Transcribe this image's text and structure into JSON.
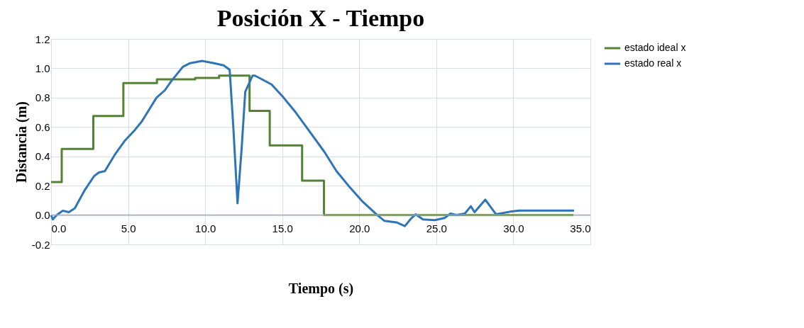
{
  "chart_data": {
    "type": "line",
    "title": "Posición X - Tiempo",
    "xlabel": "Tiempo (s)",
    "ylabel": "Distancia (m)",
    "xlim": [
      0,
      35
    ],
    "xticks": [
      {
        "value": 0,
        "label": "0.0"
      },
      {
        "value": 5,
        "label": "5.0"
      },
      {
        "value": 10,
        "label": "10.0"
      },
      {
        "value": 15,
        "label": "15.0"
      },
      {
        "value": 20,
        "label": "20.0"
      },
      {
        "value": 25,
        "label": "25.0"
      },
      {
        "value": 30,
        "label": "30.0"
      },
      {
        "value": 35,
        "label": "35.0"
      }
    ],
    "ylim": [
      -0.2,
      1.2
    ],
    "yticks": [
      {
        "value": -0.2,
        "label": "-0.2"
      },
      {
        "value": 0,
        "label": "0.0"
      },
      {
        "value": 0.2,
        "label": "0.2"
      },
      {
        "value": 0.4,
        "label": "0.4"
      },
      {
        "value": 0.6,
        "label": "0.6"
      },
      {
        "value": 0.8,
        "label": "0.8"
      },
      {
        "value": 1,
        "label": "1.0"
      },
      {
        "value": 1.2,
        "label": "1.2"
      }
    ],
    "grid": true,
    "legend": "right",
    "marker": "none",
    "line_style": "solid",
    "series": [
      {
        "name": "estado ideal x",
        "color": "#548235",
        "type": "step",
        "x": [
          0,
          0.69,
          2.74,
          4.69,
          6.87,
          9.35,
          10.9,
          12.88,
          14.19,
          16.29,
          17.71,
          33.9
        ],
        "values": [
          0.225,
          0.45,
          0.675,
          0.9,
          0.925,
          0.935,
          0.95,
          0.71,
          0.475,
          0.235,
          0,
          0
        ]
      },
      {
        "name": "estado real x",
        "color": "#2e75b6",
        "x": [
          0,
          0.11,
          0.37,
          0.76,
          1.15,
          1.54,
          2.16,
          2.79,
          3.1,
          3.49,
          4.19,
          4.81,
          5.44,
          5.9,
          6.84,
          7.38,
          7.78,
          8.55,
          9.02,
          9.8,
          10.58,
          11.2,
          11.59,
          11.82,
          12.1,
          12.37,
          12.6,
          13.07,
          13.22,
          13.69,
          14.31,
          15.09,
          15.87,
          16.81,
          17.74,
          18.52,
          19.3,
          20.23,
          21.17,
          21.64,
          22.42,
          22.96,
          23.35,
          23.66,
          24.13,
          24.9,
          25.53,
          25.92,
          26.3,
          26.85,
          27.24,
          27.48,
          28.18,
          28.49,
          28.88,
          29.89,
          30.36,
          33.94
        ],
        "values": [
          0,
          -0.03,
          0,
          0.03,
          0.02,
          0.046,
          0.166,
          0.265,
          0.29,
          0.3,
          0.42,
          0.51,
          0.58,
          0.64,
          0.8,
          0.85,
          0.91,
          1.01,
          1.035,
          1.05,
          1.035,
          1.02,
          0.99,
          0.61,
          0.08,
          0.46,
          0.84,
          0.95,
          0.95,
          0.925,
          0.89,
          0.8,
          0.7,
          0.565,
          0.43,
          0.3,
          0.2,
          0.09,
          0,
          -0.04,
          -0.05,
          -0.075,
          -0.025,
          0.005,
          -0.03,
          -0.035,
          -0.02,
          0.01,
          0,
          0.01,
          0.06,
          0.02,
          0.105,
          0.06,
          0.005,
          0.025,
          0.03,
          0.03
        ]
      }
    ]
  }
}
